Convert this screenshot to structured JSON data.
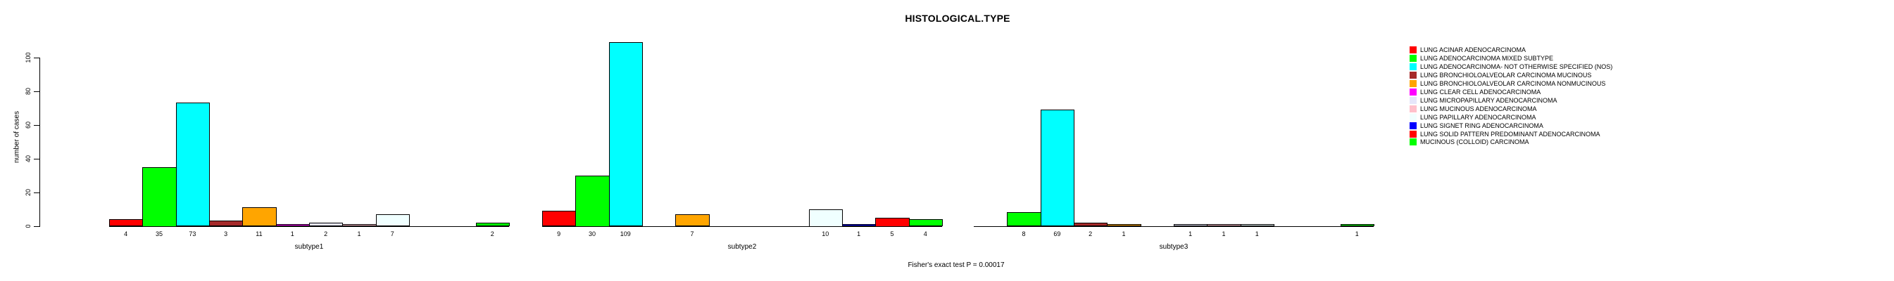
{
  "chart_data": {
    "type": "bar",
    "title": "HISTOLOGICAL.TYPE",
    "ylabel": "number of cases",
    "xlabel": "",
    "ylim": [
      0,
      110
    ],
    "y_ticks": [
      0,
      20,
      40,
      60,
      80,
      100
    ],
    "grid": false,
    "legend_position": "right",
    "bar_value_labels": true,
    "annotation": "Fisher's exact test P = 0.00017",
    "categories": [
      "LUNG ACINAR ADENOCARCINOMA",
      "LUNG ADENOCARCINOMA MIXED SUBTYPE",
      "LUNG ADENOCARCINOMA- NOT OTHERWISE SPECIFIED (NOS)",
      "LUNG BRONCHIOLOALVEOLAR CARCINOMA MUCINOUS",
      "LUNG BRONCHIOLOALVEOLAR CARCINOMA NONMUCINOUS",
      "LUNG CLEAR CELL ADENOCARCINOMA",
      "LUNG MICROPAPILLARY ADENOCARCINOMA",
      "LUNG MUCINOUS ADENOCARCINOMA",
      "LUNG PAPILLARY ADENOCARCINOMA",
      "LUNG SIGNET RING ADENOCARCINOMA",
      "LUNG SOLID PATTERN PREDOMINANT ADENOCARCINOMA",
      "MUCINOUS (COLLOID) CARCINOMA"
    ],
    "colors": [
      "#FF0000",
      "#00FF00",
      "#00FFFF",
      "#A52A2A",
      "#FFA500",
      "#FF00FF",
      "#E6E6FA",
      "#FFC0CB",
      "#F0FFFF",
      "#0000FF",
      "#FF0000",
      "#00FF00"
    ],
    "groups": [
      {
        "label": "subtype1",
        "values": [
          4,
          35,
          73,
          3,
          11,
          1,
          2,
          1,
          7,
          0,
          0,
          2
        ]
      },
      {
        "label": "subtype2",
        "values": [
          9,
          30,
          109,
          0,
          7,
          0,
          0,
          0,
          10,
          1,
          5,
          4
        ]
      },
      {
        "label": "subtype3",
        "values": [
          0,
          8,
          69,
          2,
          1,
          0,
          1,
          1,
          1,
          0,
          0,
          1
        ]
      }
    ]
  }
}
